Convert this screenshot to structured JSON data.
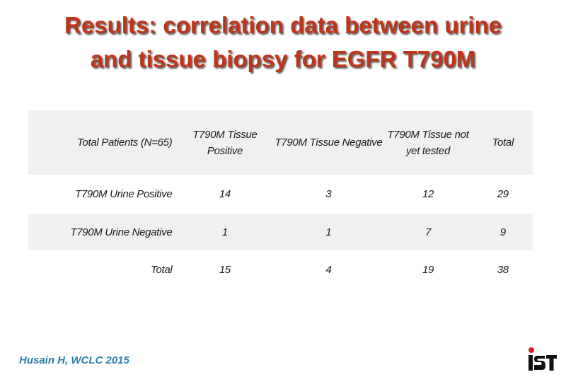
{
  "slide": {
    "title_line1": "Results: correlation data between urine",
    "title_line2": "and tissue biopsy for EGFR T790M",
    "citation": "Husain H, WCLC 2015",
    "logo_text": "IST",
    "colors": {
      "title": "#c0351a",
      "citation": "#2a7fa8",
      "row_band": "#f0f0f0",
      "logo_red": "#e02020"
    }
  },
  "table": {
    "headers": [
      "Total Patients (N=65)",
      "T790M Tissue Positive",
      "T790M Tissue Negative",
      "T790M Tissue not yet tested",
      "Total"
    ],
    "rows": [
      {
        "label": "T790M Urine Positive",
        "values": [
          "14",
          "3",
          "12",
          "29"
        ]
      },
      {
        "label": "T790M Urine Negative",
        "values": [
          "1",
          "1",
          "7",
          "9"
        ]
      },
      {
        "label": "Total",
        "values": [
          "15",
          "4",
          "19",
          "38"
        ]
      }
    ]
  }
}
